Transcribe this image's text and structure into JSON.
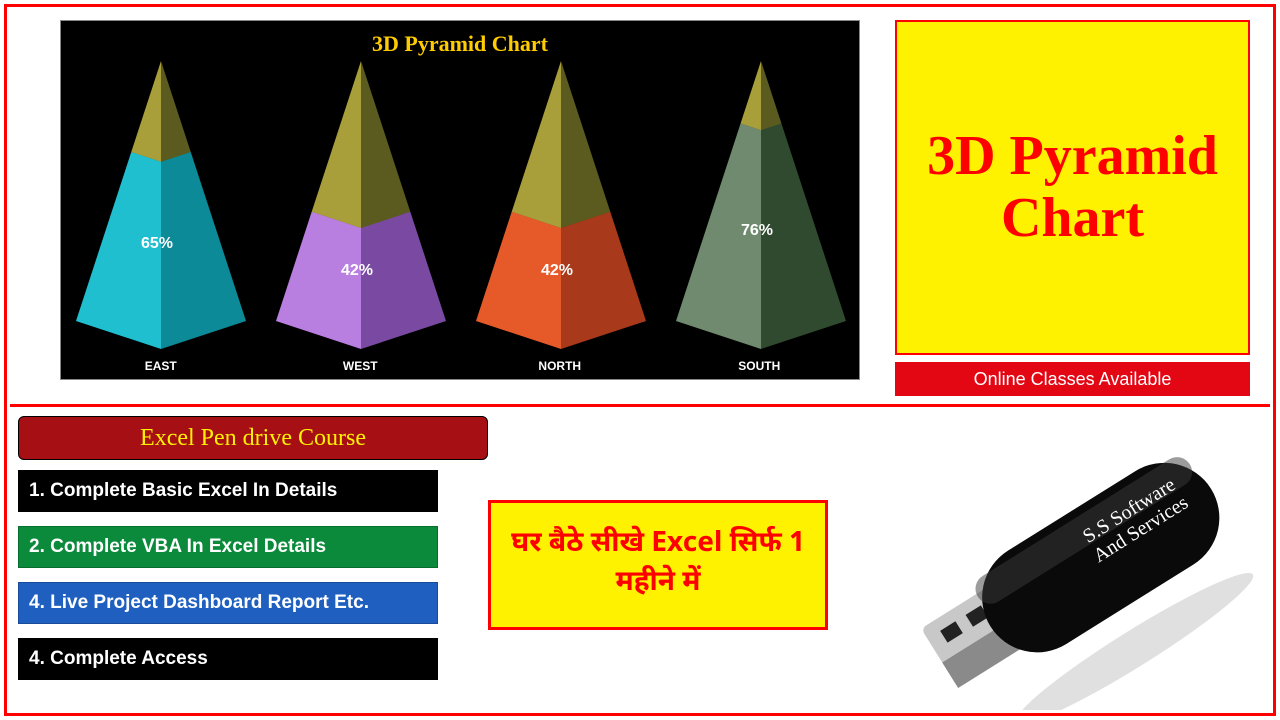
{
  "chart": {
    "title": "3D Pyramid Chart",
    "title_color": "#ffcc00",
    "title_fontsize": 22,
    "background": "#000000",
    "categories": [
      "EAST",
      "WEST",
      "NORTH",
      "SOUTH"
    ],
    "values": [
      65,
      42,
      42,
      76
    ],
    "value_labels": [
      "65%",
      "42%",
      "42%",
      "76%"
    ],
    "fill_heights_pct": [
      65,
      42,
      42,
      76
    ],
    "top_color": "#5b5a1f",
    "top_highlight": "#a99f3a",
    "fill_colors_left": [
      "#1fbfcf",
      "#b97fe0",
      "#e65a2a",
      "#6f8a6f"
    ],
    "fill_colors_right": [
      "#0c8a98",
      "#7a4aa3",
      "#a8391a",
      "#2f4a2f"
    ],
    "label_color": "#ffffff",
    "xlabel_color": "#ffffff",
    "xlabel_fontsize": 12
  },
  "title_panel": {
    "line1": "3D Pyramid",
    "line2": "Chart",
    "bg": "#fff200",
    "border": "#ff0000",
    "text_color": "#ff0000",
    "fontsize": 56
  },
  "online_bar": {
    "text": "Online Classes Available",
    "bg": "#e30613",
    "text_color": "#ffffff"
  },
  "course_header": {
    "text": "Excel Pen drive Course",
    "bg": "#a60f14",
    "text_color": "#fff200"
  },
  "course_items": [
    {
      "text": "1. Complete Basic Excel In Details",
      "bg": "#000000"
    },
    {
      "text": "2. Complete VBA In Excel Details",
      "bg": "#0a8a3a"
    },
    {
      "text": "4. Live Project Dashboard Report Etc.",
      "bg": "#1f5fbf"
    },
    {
      "text": "4. Complete Access",
      "bg": "#000000"
    }
  ],
  "hindi_box": {
    "text": "घर बैठे सीखे Excel सिर्फ 1 महीने में",
    "bg": "#fff200",
    "border": "#ff0000",
    "text_color": "#ff0000"
  },
  "pendrive": {
    "body_color": "#0a0a0a",
    "body_highlight": "#3a3a3a",
    "metal_color": "#c8c8c8",
    "metal_shadow": "#8a8a8a",
    "label": "S.S Software And Services",
    "label_color": "#ffffff"
  },
  "frame_color": "#ff0000"
}
